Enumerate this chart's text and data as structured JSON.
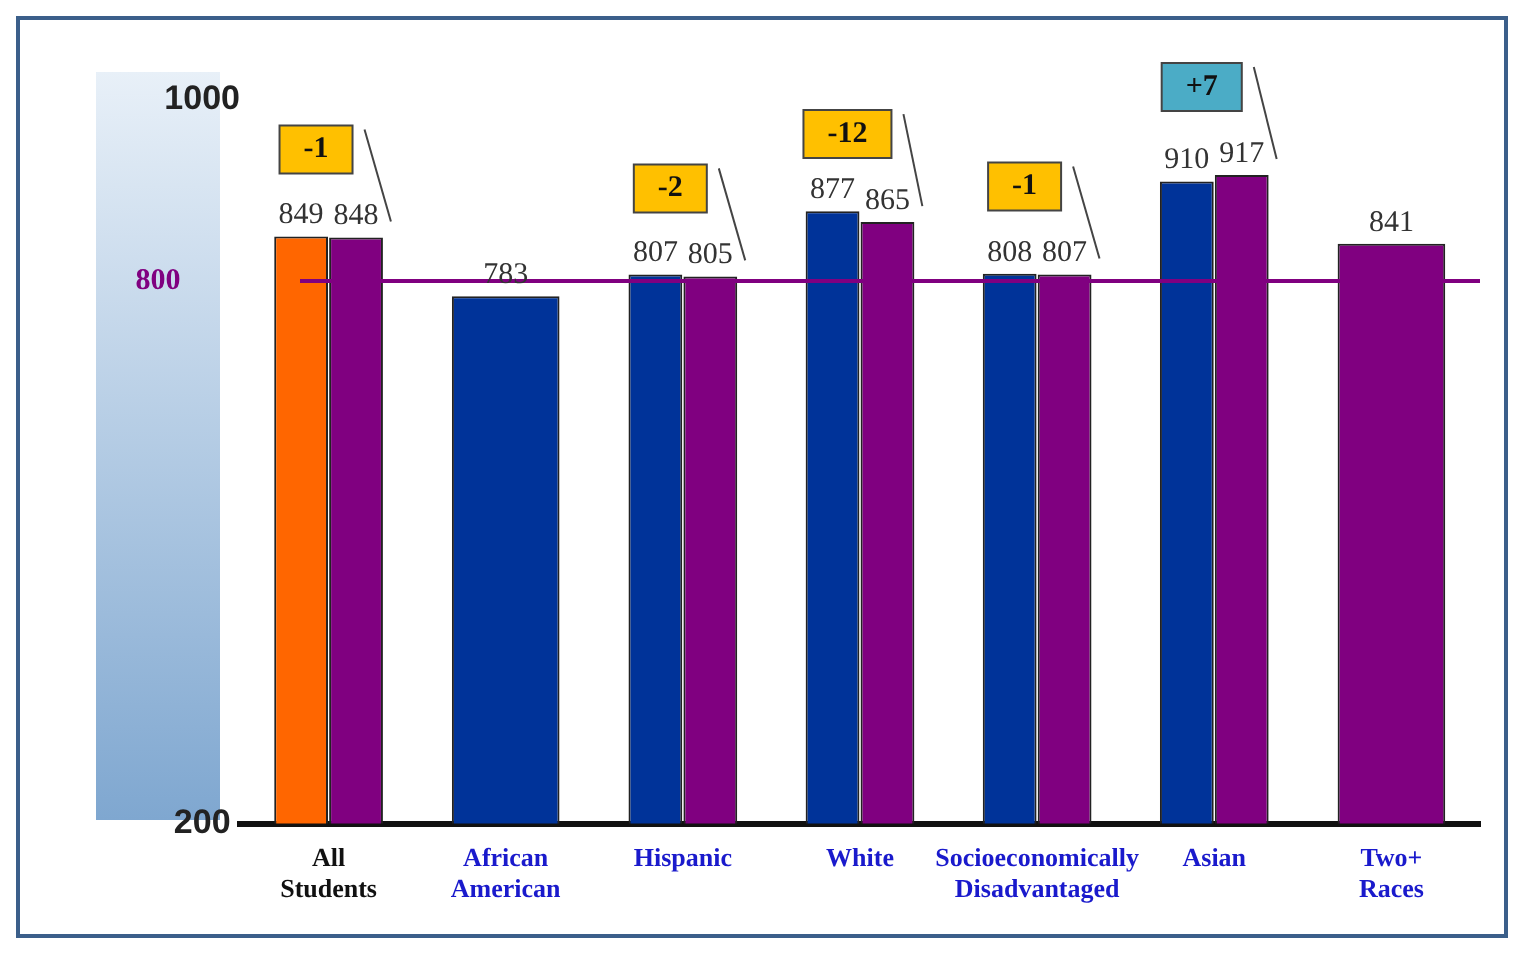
{
  "chart_data": {
    "type": "bar",
    "categories": [
      "All Students",
      "African American",
      "Hispanic",
      "White",
      "Socioeconomically Disadvantaged",
      "Asian",
      "Two+ Races"
    ],
    "series": [
      {
        "colors": [
          "#ff6600",
          "#003399",
          "#003399",
          "#003399",
          "#003399",
          "#003399",
          "#003399"
        ],
        "values": [
          849,
          783,
          807,
          877,
          808,
          910,
          null
        ]
      },
      {
        "color": "#800080",
        "values": [
          848,
          null,
          805,
          865,
          807,
          917,
          841
        ]
      }
    ],
    "ylim": [
      200,
      1000
    ],
    "yticks": [
      200,
      1000
    ],
    "grid": false,
    "legend": false,
    "data_labels": true,
    "ref_lines": [
      {
        "axis": "y",
        "value": 800,
        "label": "800",
        "color": "#800080"
      }
    ],
    "annotations": [
      {
        "text": "-1",
        "x": "All Students",
        "y": 848
      },
      {
        "text": "-2",
        "x": "Hispanic",
        "y": 805
      },
      {
        "text": "-12",
        "x": "White",
        "y": 865
      },
      {
        "text": "-1",
        "x": "Socioeconomically Disadvantaged",
        "y": 807
      },
      {
        "text": "+7",
        "x": "Asian",
        "y": 917
      }
    ]
  }
}
